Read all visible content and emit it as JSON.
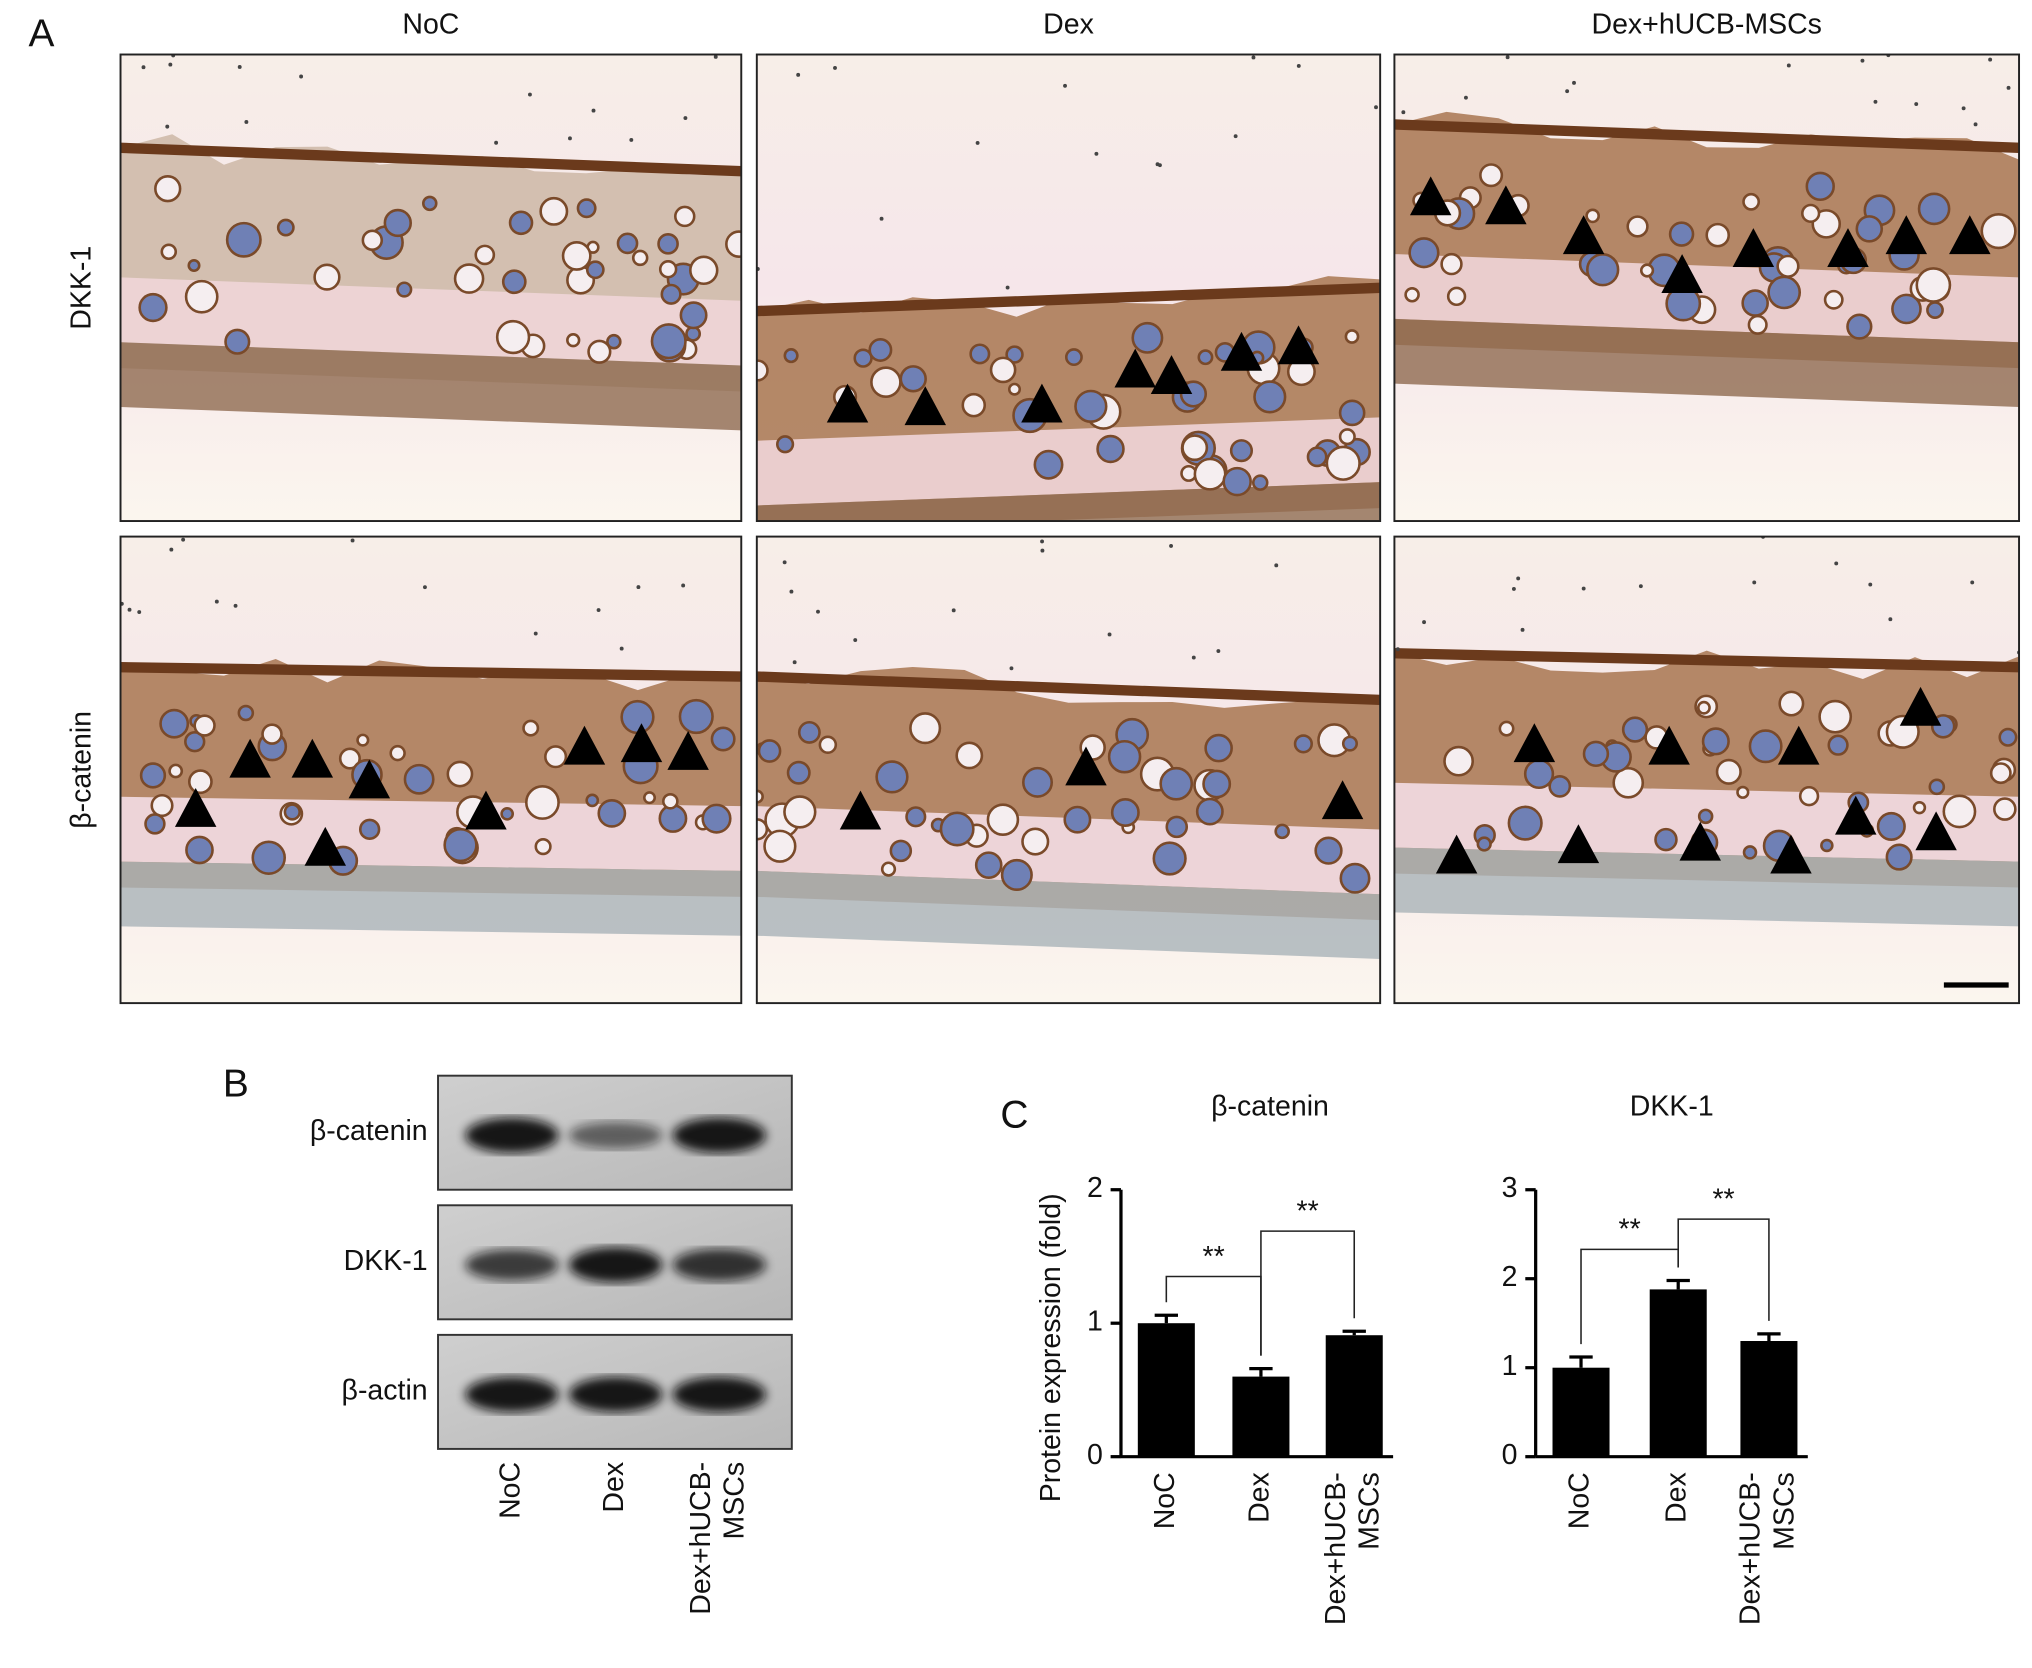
{
  "panel_A": {
    "label": "A",
    "columns": [
      "NoC",
      "Dex",
      "Dex+hUCB-MSCs"
    ],
    "rows": [
      "DKK-1",
      "β-catenin"
    ]
  },
  "panel_B": {
    "label": "B",
    "bands": [
      "β-catenin",
      "DKK-1",
      "β-actin"
    ],
    "lanes": [
      [
        "NoC"
      ],
      [
        "Dex"
      ],
      [
        "Dex+hUCB-",
        "MSCs"
      ]
    ]
  },
  "panel_C": {
    "label": "C"
  },
  "chart_data": [
    {
      "type": "bar",
      "title": "β-catenin",
      "y_label": "Protein expression (fold)",
      "categories": [
        [
          "NoC"
        ],
        [
          "Dex"
        ],
        [
          "Dex+hUCB-",
          "MSCs"
        ]
      ],
      "values": [
        1.0,
        0.6,
        0.91
      ],
      "errors": [
        0.06,
        0.06,
        0.03
      ],
      "color": "#000000",
      "ylim": [
        0,
        2
      ],
      "yticks": [
        0,
        1,
        2
      ],
      "annotations": [
        {
          "text": "**",
          "bars": [
            0,
            1
          ],
          "y": 1.35
        },
        {
          "text": "**",
          "bars": [
            1,
            2
          ],
          "y": 1.69
        }
      ]
    },
    {
      "type": "bar",
      "title": "DKK-1",
      "categories": [
        [
          "NoC"
        ],
        [
          "Dex"
        ],
        [
          "Dex+hUCB-",
          "MSCs"
        ]
      ],
      "values": [
        1.0,
        1.88,
        1.3
      ],
      "errors": [
        0.12,
        0.1,
        0.08
      ],
      "color": "#000000",
      "ylim": [
        0,
        3
      ],
      "yticks": [
        0,
        1,
        2,
        3
      ],
      "annotations": [
        {
          "text": "**",
          "bars": [
            0,
            1
          ],
          "y": 2.33
        },
        {
          "text": "**",
          "bars": [
            1,
            2
          ],
          "y": 2.67
        }
      ]
    }
  ]
}
